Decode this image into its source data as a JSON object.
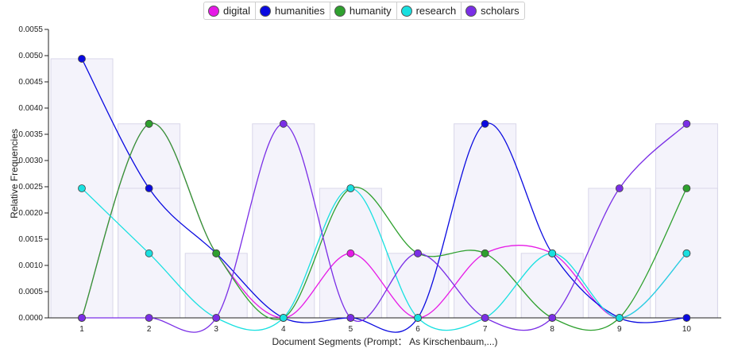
{
  "chart_data": {
    "type": "line",
    "xlabel": "Document Segments (Prompt： As Kirschenbaum,...)",
    "ylabel": "Relative Frequencies",
    "x": [
      1,
      2,
      3,
      4,
      5,
      6,
      7,
      8,
      9,
      10
    ],
    "ylim": [
      0,
      0.0055
    ],
    "yticks": [
      "0.0000",
      "0.0005",
      "0.0010",
      "0.0015",
      "0.0020",
      "0.0025",
      "0.0030",
      "0.0035",
      "0.0040",
      "0.0045",
      "0.0050",
      "0.0055"
    ],
    "legend_position": "top-center",
    "background_bars": [
      0.00494,
      0.0037,
      0.00123,
      0.0037,
      0.00247,
      0.00123,
      0.0037,
      0.00123,
      0.00247,
      0.0037
    ],
    "background_bars_inner": [
      0,
      0.00247,
      0,
      0,
      0,
      0,
      0,
      0,
      0,
      0.00247
    ],
    "series": [
      {
        "name": "digital",
        "color": "#e619e6",
        "values": [
          0,
          0.0037,
          0.00123,
          0,
          0.00123,
          0,
          0.00123,
          0.00123,
          0,
          0.00123
        ]
      },
      {
        "name": "humanities",
        "color": "#0a0ae0",
        "values": [
          0.00494,
          0.00247,
          0.00123,
          0,
          0,
          0,
          0.0037,
          0.00123,
          0,
          0
        ]
      },
      {
        "name": "humanity",
        "color": "#2ea02e",
        "values": [
          0,
          0.0037,
          0.00123,
          0,
          0.00247,
          0.00123,
          0.00123,
          0,
          0,
          0.00247
        ]
      },
      {
        "name": "research",
        "color": "#19e0e0",
        "values": [
          0.00247,
          0.00123,
          0,
          0,
          0.00247,
          0,
          0,
          0.00123,
          0,
          0.00123
        ]
      },
      {
        "name": "scholars",
        "color": "#7a2ee6",
        "values": [
          0,
          0,
          0,
          0.0037,
          0,
          0.00123,
          0,
          0,
          0.00247,
          0.0037
        ]
      }
    ]
  }
}
